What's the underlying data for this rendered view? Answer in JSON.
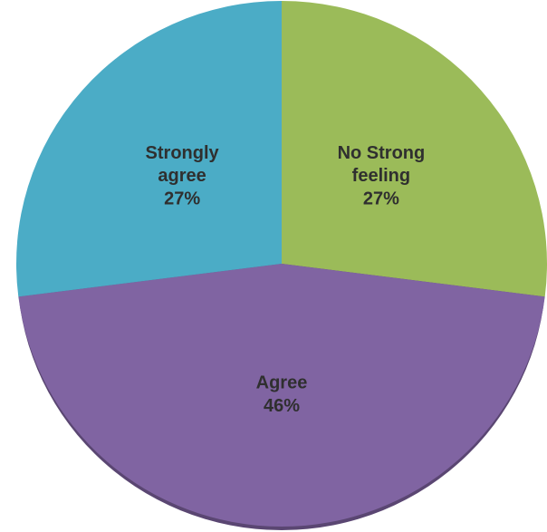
{
  "chart_data": {
    "type": "pie",
    "categories": [
      "No Strong feeling",
      "Agree",
      "Strongly agree"
    ],
    "values": [
      27,
      46,
      27
    ],
    "value_labels": [
      "27%",
      "46%",
      "27%"
    ],
    "colors": [
      "#9bbb59",
      "#8064a2",
      "#4bacc6"
    ]
  }
}
